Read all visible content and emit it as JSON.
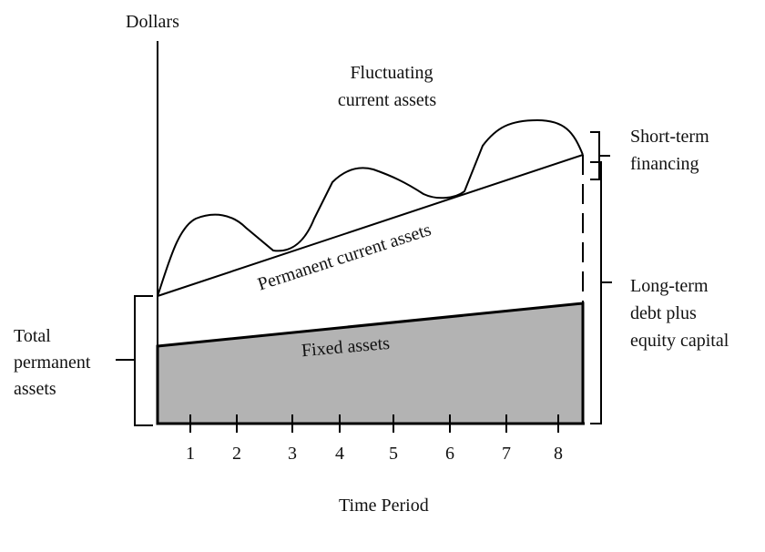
{
  "axis_label_y": "Dollars",
  "axis_label_x": "Time Period",
  "ticks": [
    1,
    2,
    3,
    4,
    5,
    6,
    7,
    8
  ],
  "labels": {
    "fluctuating": [
      "Fluctuating",
      "current  assets"
    ],
    "short_term": [
      "Short-term",
      "financing"
    ],
    "permanent_current": "Permanent  current  assets",
    "fixed": "Fixed assets",
    "long_term": [
      "Long-term",
      "debt plus",
      "equity capital"
    ],
    "total_permanent": [
      "Total",
      "permanent",
      "assets"
    ]
  }
}
